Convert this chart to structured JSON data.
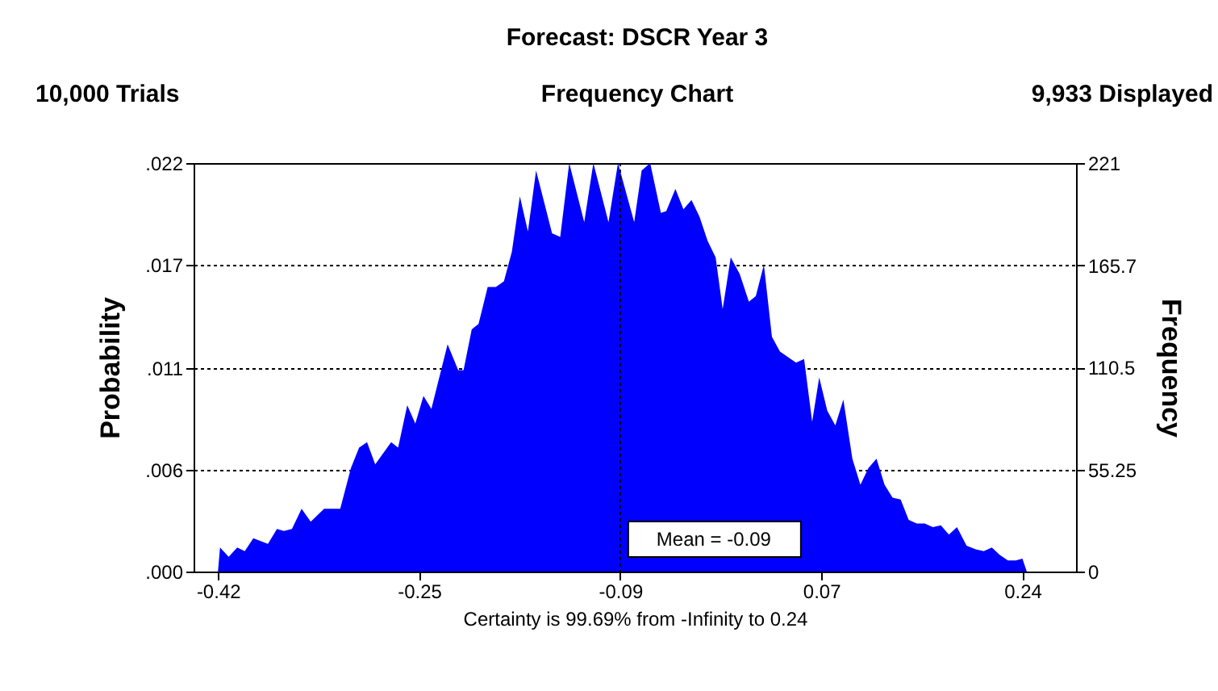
{
  "chart_data": {
    "type": "area",
    "title": "Forecast: DSCR Year 3",
    "subtitle": "Frequency Chart",
    "annotations": [
      "10,000 Trials",
      "9,933 Displayed"
    ],
    "xlabel": "Certainty is 99.69% from -Infinity to 0.24",
    "ylabel": "Probability",
    "y2label": "Frequency",
    "series": [
      {
        "color": "#0000ff",
        "axis": "y2",
        "x": [
          -0.42,
          -0.4183,
          -0.4112,
          -0.4042,
          -0.398,
          -0.391,
          -0.379,
          -0.3716,
          -0.3659,
          -0.3593,
          -0.3514,
          -0.3439,
          -0.3329,
          -0.3197,
          -0.3109,
          -0.3042,
          -0.2977,
          -0.291,
          -0.2779,
          -0.2722,
          -0.2647,
          -0.2581,
          -0.2514,
          -0.2449,
          -0.2316,
          -0.2229,
          -0.2185,
          -0.2118,
          -0.2062,
          -0.1987,
          -0.192,
          -0.1854,
          -0.1789,
          -0.1723,
          -0.1657,
          -0.159,
          -0.1459,
          -0.1392,
          -0.1318,
          -0.1195,
          -0.112,
          -0.0996,
          -0.0918,
          -0.0785,
          -0.0724,
          -0.0654,
          -0.0566,
          -0.0522,
          -0.0447,
          -0.0381,
          -0.0315,
          -0.0249,
          -0.0183,
          -0.0117,
          -0.0059,
          0.0007,
          0.0081,
          0.0156,
          0.0213,
          0.0279,
          0.0345,
          0.0411,
          0.0543,
          0.0609,
          0.0675,
          0.0733,
          0.0799,
          0.0865,
          0.0931,
          0.1005,
          0.1071,
          0.1137,
          0.1203,
          0.1269,
          0.1335,
          0.1401,
          0.1467,
          0.1533,
          0.1599,
          0.1665,
          0.1731,
          0.1797,
          0.1863,
          0.1942,
          0.2017,
          0.2083,
          0.2149,
          0.2215,
          0.2281,
          0.2347,
          0.24,
          0.2436
        ],
        "values": [
          0,
          13,
          8,
          13,
          11,
          18,
          15,
          23,
          22,
          23,
          34,
          27,
          34,
          34,
          56,
          67,
          70,
          58,
          70,
          67,
          90,
          80,
          95,
          88,
          123,
          109,
          109,
          131,
          134,
          154,
          154,
          157,
          173,
          203,
          184,
          217,
          183,
          181,
          221,
          189,
          221,
          189,
          221,
          189,
          217,
          221,
          194,
          195,
          207,
          196,
          201,
          192,
          179,
          170,
          142,
          170,
          161,
          146,
          149,
          166,
          127,
          119,
          113,
          115,
          81,
          105,
          87,
          79,
          93,
          61,
          47,
          56,
          61,
          47,
          40,
          39,
          28,
          26,
          26,
          24,
          25,
          20,
          24,
          14,
          12,
          11,
          13,
          9,
          6,
          6,
          7,
          0
        ]
      }
    ],
    "xlim": [
      -0.44,
      0.284
    ],
    "xticks": [
      -0.42,
      {
        "value": -0.255,
        "label": "-0.25"
      },
      -0.09,
      {
        "value": 0.075,
        "label": "0.07"
      },
      0.24
    ],
    "ylim": [
      0,
      0.0221
    ],
    "yticks": [
      {
        "value": 0,
        "label": ".000"
      },
      {
        "value": 0.0055,
        "label": ".006"
      },
      {
        "value": 0.011,
        "label": ".011"
      },
      {
        "value": 0.0166,
        "label": ".017"
      },
      {
        "value": 0.0221,
        "label": ".022"
      }
    ],
    "y2lim": [
      0,
      221
    ],
    "y2ticks": [
      0,
      55.25,
      110.5,
      165.7,
      221
    ],
    "ref_lines": [
      {
        "axis": "x",
        "value": -0.09,
        "label": "Mean = -0.09",
        "line_style": "dotted",
        "color": "#000000"
      }
    ],
    "grid": "y"
  }
}
